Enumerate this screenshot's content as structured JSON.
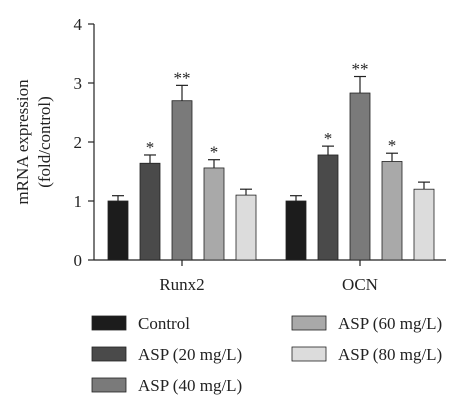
{
  "chart_data": {
    "type": "bar",
    "ylabel_line1": "mRNA expression",
    "ylabel_line2": "(fold/control)",
    "ylim": [
      0,
      4
    ],
    "yticks": [
      "0",
      "1",
      "2",
      "3",
      "4"
    ],
    "categories": [
      "Runx2",
      "OCN"
    ],
    "series": [
      {
        "name": "Control",
        "color": "#1c1c1c",
        "values": [
          1.0,
          1.0
        ],
        "errors": [
          0.09,
          0.09
        ],
        "marks": [
          "",
          ""
        ]
      },
      {
        "name": "ASP (20 mg/L)",
        "color": "#4a4a4a",
        "values": [
          1.64,
          1.78
        ],
        "errors": [
          0.14,
          0.15
        ],
        "marks": [
          "*",
          "*"
        ]
      },
      {
        "name": "ASP (40 mg/L)",
        "color": "#7a7a7a",
        "values": [
          2.7,
          2.83
        ],
        "errors": [
          0.26,
          0.28
        ],
        "marks": [
          "**",
          "**"
        ]
      },
      {
        "name": "ASP (60 mg/L)",
        "color": "#a9a9a9",
        "values": [
          1.56,
          1.67
        ],
        "errors": [
          0.14,
          0.14
        ],
        "marks": [
          "*",
          "*"
        ]
      },
      {
        "name": "ASP (80 mg/L)",
        "color": "#dcdcdc",
        "values": [
          1.1,
          1.2
        ],
        "errors": [
          0.1,
          0.12
        ],
        "marks": [
          "",
          ""
        ]
      }
    ],
    "legend_placement": "bottom",
    "grid": false
  }
}
